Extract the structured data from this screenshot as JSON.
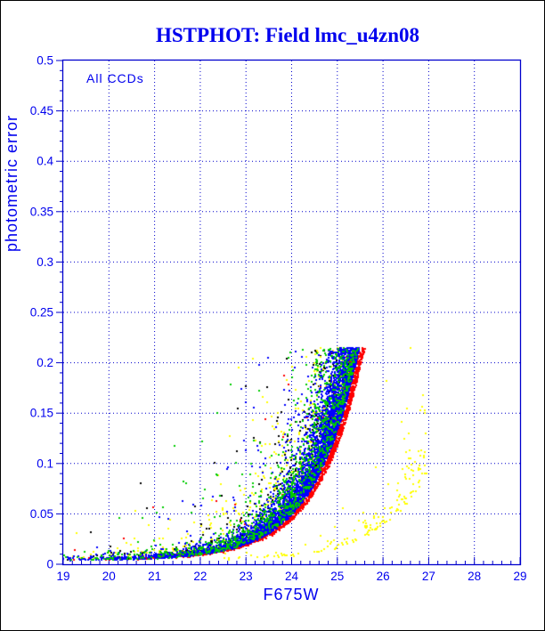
{
  "window": {
    "background": "#ffffff",
    "border_color": "#000000"
  },
  "colors": {
    "text_blue": "#0000EE",
    "axis_blue": "#0000CC"
  },
  "chart_data": {
    "type": "scatter",
    "title": "HSTPHOT: Field lmc_u4zn08",
    "annotation": "All CCDs",
    "xlabel": "F675W",
    "ylabel": "photometric error",
    "xlim": [
      19,
      29
    ],
    "ylim": [
      0,
      0.5
    ],
    "x_major_step": 1,
    "x_minor_step": 0.2,
    "y_major_step": 0.05,
    "y_minor_step": 0.01,
    "x_tick_labels": [
      "19",
      "20",
      "21",
      "22",
      "23",
      "24",
      "25",
      "26",
      "27",
      "28",
      "29"
    ],
    "y_tick_labels": [
      "0",
      "0.05",
      "0.1",
      "0.15",
      "0.2",
      "0.25",
      "0.3",
      "0.35",
      "0.4",
      "0.45",
      "0.5"
    ],
    "grid": "dotted lines at every major tick, blue",
    "error_cutoff": 0.215,
    "main_envelope_points": [
      [
        19,
        0.004
      ],
      [
        20,
        0.005
      ],
      [
        21,
        0.006
      ],
      [
        22,
        0.01
      ],
      [
        23,
        0.02
      ],
      [
        24,
        0.049
      ],
      [
        24.5,
        0.08
      ],
      [
        25,
        0.132
      ],
      [
        25.4,
        0.198
      ],
      [
        25.5,
        0.215
      ]
    ],
    "secondary_sequence_points": [
      [
        22.3,
        0.004
      ],
      [
        23,
        0.005
      ],
      [
        24,
        0.008
      ],
      [
        25,
        0.016
      ],
      [
        26,
        0.038
      ],
      [
        26.6,
        0.065
      ],
      [
        26.9,
        0.095
      ]
    ],
    "rng_seed": 42,
    "point_size": 2,
    "series": [
      {
        "name": "ccd-black",
        "color": "#000000",
        "count": 600,
        "env": {
          "e0": 0.004,
          "A": 0.215,
          "s": 0.45,
          "mref": 25.45
        },
        "mag_min": 19,
        "mag_max": 25.5,
        "density_k": 0.27,
        "scatter_scale": 0.5,
        "outlier_frac": 0.15,
        "outlier_boost": 8
      },
      {
        "name": "ccd-yellow",
        "color": "#FFFF00",
        "count": 520,
        "env": {
          "e0": 0.004,
          "A": 0.215,
          "s": 0.45,
          "mref": 25.45
        },
        "mag_min": 19,
        "mag_max": 25.5,
        "density_k": 0.26,
        "scatter_scale": 0.9,
        "outlier_frac": 0.22,
        "outlier_boost": 7
      },
      {
        "name": "ccd-red",
        "color": "#FF0000",
        "count": 1600,
        "env": {
          "e0": 0.004,
          "A": 0.215,
          "s": 0.45,
          "mref": 25.62
        },
        "mag_min": 19,
        "mag_max": 25.68,
        "density_k": 0.34,
        "scatter_scale": 0.1,
        "outlier_frac": 0.05,
        "outlier_boost": 6
      },
      {
        "name": "ccd-blue",
        "color": "#0000FF",
        "count": 4300,
        "env": {
          "e0": 0.004,
          "A": 0.215,
          "s": 0.45,
          "mref": 25.5
        },
        "mag_min": 19,
        "mag_max": 25.55,
        "density_k": 0.33,
        "scatter_scale": 0.3,
        "outlier_frac": 0.05,
        "outlier_boost": 6
      },
      {
        "name": "ccd-green",
        "color": "#00CC00",
        "count": 1150,
        "env": {
          "e0": 0.004,
          "A": 0.215,
          "s": 0.45,
          "mref": 25.48
        },
        "mag_min": 19,
        "mag_max": 25.5,
        "density_k": 0.3,
        "scatter_scale": 0.55,
        "outlier_frac": 0.12,
        "outlier_boost": 7
      },
      {
        "name": "ccd-yellow-shallow-sequence",
        "color": "#FFFF00",
        "count": 170,
        "env": {
          "e0": 0.003,
          "A": 0.075,
          "s": 0.42,
          "mref": 26.8
        },
        "mag_min": 22.3,
        "mag_max": 26.95,
        "density_k": 0.3,
        "scatter_scale": 0.35,
        "outlier_frac": 0.06,
        "outlier_boost": 3
      }
    ]
  }
}
